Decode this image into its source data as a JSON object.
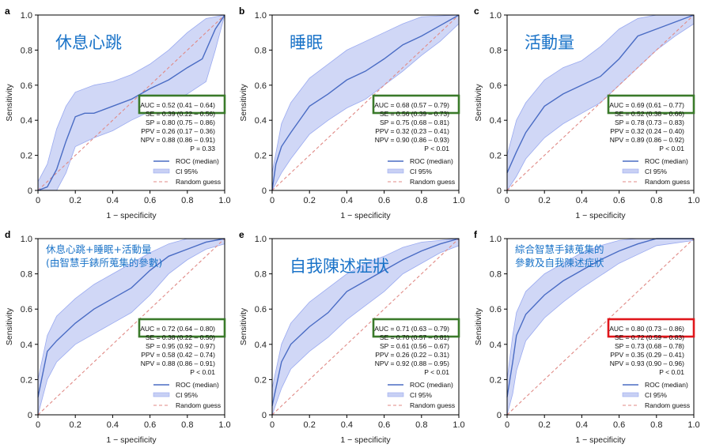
{
  "x_axis_label": "1 − specificity",
  "y_axis_label": "Sensitivity",
  "ticks": [
    "0",
    "0.2",
    "0.4",
    "0.6",
    "0.8",
    "1.0"
  ],
  "legend": {
    "roc": "ROC (median)",
    "ci": "CI 95%",
    "random": "Random guess"
  },
  "colors": {
    "roc": "#4a6cc4",
    "ci_fill": "#c8d0f4",
    "ci_edge": "#9aaaf0",
    "random": "#e08a86",
    "box_green": "#3a7a2a",
    "box_red": "#e0161b",
    "title": "#1a73c8"
  },
  "chart_data": [
    {
      "letter": "a",
      "type": "line",
      "title_lines": [
        "休息心跳"
      ],
      "title_style": "big",
      "auc": "AUC = 0.52 (0.41 – 0.64)",
      "box": "green",
      "stats": [
        "SE = 0.39 (0.22 – 0.56)",
        "SP = 0.80 (0.75 – 0.86)",
        "PPV = 0.26 (0.17 – 0.36)",
        "NPV = 0.88 (0.86 – 0.91)",
        "P = 0.33"
      ],
      "xlim": [
        0,
        1
      ],
      "ylim": [
        0,
        1
      ],
      "roc": [
        [
          0,
          0
        ],
        [
          0.05,
          0.02
        ],
        [
          0.1,
          0.12
        ],
        [
          0.15,
          0.28
        ],
        [
          0.2,
          0.42
        ],
        [
          0.25,
          0.44
        ],
        [
          0.3,
          0.44
        ],
        [
          0.4,
          0.48
        ],
        [
          0.5,
          0.52
        ],
        [
          0.6,
          0.58
        ],
        [
          0.7,
          0.63
        ],
        [
          0.8,
          0.7
        ],
        [
          0.88,
          0.75
        ],
        [
          0.95,
          0.92
        ],
        [
          1,
          1
        ]
      ],
      "ci_upper": [
        [
          0,
          0.05
        ],
        [
          0.05,
          0.15
        ],
        [
          0.1,
          0.35
        ],
        [
          0.15,
          0.48
        ],
        [
          0.2,
          0.56
        ],
        [
          0.3,
          0.6
        ],
        [
          0.4,
          0.62
        ],
        [
          0.5,
          0.66
        ],
        [
          0.6,
          0.72
        ],
        [
          0.7,
          0.8
        ],
        [
          0.8,
          0.9
        ],
        [
          0.9,
          0.98
        ],
        [
          1,
          1
        ]
      ],
      "ci_lower": [
        [
          0,
          0
        ],
        [
          0.1,
          0
        ],
        [
          0.15,
          0.1
        ],
        [
          0.2,
          0.25
        ],
        [
          0.3,
          0.3
        ],
        [
          0.4,
          0.34
        ],
        [
          0.5,
          0.4
        ],
        [
          0.6,
          0.45
        ],
        [
          0.7,
          0.5
        ],
        [
          0.8,
          0.55
        ],
        [
          0.9,
          0.62
        ],
        [
          0.95,
          0.8
        ],
        [
          1,
          1
        ]
      ]
    },
    {
      "letter": "b",
      "type": "line",
      "title_lines": [
        "睡眠"
      ],
      "title_style": "big",
      "auc": "AUC = 0.68 (0.57 – 0.79)",
      "box": "green",
      "stats": [
        "SE = 0.56 (0.39 – 0.73)",
        "SP = 0.75 (0.68 – 0.81)",
        "PPV = 0.32 (0.23 – 0.41)",
        "NPV = 0.90 (0.86 – 0.93)",
        "P < 0.01"
      ],
      "xlim": [
        0,
        1
      ],
      "ylim": [
        0,
        1
      ],
      "roc": [
        [
          0,
          0
        ],
        [
          0.02,
          0.15
        ],
        [
          0.05,
          0.25
        ],
        [
          0.1,
          0.33
        ],
        [
          0.2,
          0.48
        ],
        [
          0.3,
          0.55
        ],
        [
          0.4,
          0.63
        ],
        [
          0.5,
          0.68
        ],
        [
          0.6,
          0.75
        ],
        [
          0.7,
          0.83
        ],
        [
          0.8,
          0.88
        ],
        [
          0.9,
          0.94
        ],
        [
          1,
          1
        ]
      ],
      "ci_upper": [
        [
          0,
          0.1
        ],
        [
          0.05,
          0.38
        ],
        [
          0.1,
          0.5
        ],
        [
          0.2,
          0.64
        ],
        [
          0.3,
          0.72
        ],
        [
          0.4,
          0.8
        ],
        [
          0.5,
          0.85
        ],
        [
          0.6,
          0.9
        ],
        [
          0.7,
          0.95
        ],
        [
          0.8,
          0.99
        ],
        [
          1,
          1
        ]
      ],
      "ci_lower": [
        [
          0,
          0
        ],
        [
          0.05,
          0.1
        ],
        [
          0.1,
          0.18
        ],
        [
          0.2,
          0.32
        ],
        [
          0.3,
          0.4
        ],
        [
          0.4,
          0.47
        ],
        [
          0.5,
          0.52
        ],
        [
          0.6,
          0.6
        ],
        [
          0.7,
          0.68
        ],
        [
          0.8,
          0.77
        ],
        [
          0.9,
          0.85
        ],
        [
          1,
          0.95
        ]
      ]
    },
    {
      "letter": "c",
      "type": "line",
      "title_lines": [
        "活動量"
      ],
      "title_style": "big",
      "auc": "AUC = 0.69 (0.61 – 0.77)",
      "box": "green",
      "stats": [
        "SE = 0.52 (0.38 – 0.66)",
        "SP = 0.78 (0.73 – 0.83)",
        "PPV = 0.32 (0.24 – 0.40)",
        "NPV = 0.89 (0.86 – 0.92)",
        "P < 0.01"
      ],
      "xlim": [
        0,
        1
      ],
      "ylim": [
        0,
        1
      ],
      "roc": [
        [
          0,
          0.1
        ],
        [
          0.05,
          0.22
        ],
        [
          0.1,
          0.33
        ],
        [
          0.2,
          0.48
        ],
        [
          0.3,
          0.55
        ],
        [
          0.4,
          0.6
        ],
        [
          0.5,
          0.65
        ],
        [
          0.6,
          0.75
        ],
        [
          0.7,
          0.88
        ],
        [
          0.8,
          0.92
        ],
        [
          0.9,
          0.96
        ],
        [
          1,
          1
        ]
      ],
      "ci_upper": [
        [
          0,
          0.2
        ],
        [
          0.05,
          0.4
        ],
        [
          0.1,
          0.5
        ],
        [
          0.2,
          0.63
        ],
        [
          0.3,
          0.7
        ],
        [
          0.4,
          0.74
        ],
        [
          0.5,
          0.82
        ],
        [
          0.6,
          0.92
        ],
        [
          0.7,
          0.98
        ],
        [
          0.8,
          1
        ],
        [
          1,
          1
        ]
      ],
      "ci_lower": [
        [
          0,
          0
        ],
        [
          0.05,
          0.08
        ],
        [
          0.1,
          0.18
        ],
        [
          0.2,
          0.3
        ],
        [
          0.3,
          0.38
        ],
        [
          0.4,
          0.44
        ],
        [
          0.5,
          0.5
        ],
        [
          0.6,
          0.6
        ],
        [
          0.7,
          0.7
        ],
        [
          0.8,
          0.8
        ],
        [
          0.9,
          0.88
        ],
        [
          1,
          0.95
        ]
      ]
    },
    {
      "letter": "d",
      "type": "line",
      "title_lines": [
        "休息心跳+睡眠+活動量",
        "(由智慧手錶所蒐集的參數)"
      ],
      "title_style": "small",
      "auc": "AUC = 0.72 (0.64 – 0.80)",
      "box": "green",
      "stats": [
        "SE = 0.38 (0.22 – 0.50)",
        "SP = 0.95 (0.92 – 0.97)",
        "PPV = 0.58 (0.42 – 0.74)",
        "NPV = 0.88 (0.86 – 0.91)",
        "P < 0.01"
      ],
      "xlim": [
        0,
        1
      ],
      "ylim": [
        0,
        1
      ],
      "roc": [
        [
          0,
          0.1
        ],
        [
          0.05,
          0.36
        ],
        [
          0.1,
          0.42
        ],
        [
          0.2,
          0.52
        ],
        [
          0.3,
          0.6
        ],
        [
          0.4,
          0.66
        ],
        [
          0.5,
          0.72
        ],
        [
          0.6,
          0.82
        ],
        [
          0.7,
          0.9
        ],
        [
          0.8,
          0.94
        ],
        [
          0.9,
          0.98
        ],
        [
          1,
          1
        ]
      ],
      "ci_upper": [
        [
          0,
          0.2
        ],
        [
          0.05,
          0.45
        ],
        [
          0.1,
          0.56
        ],
        [
          0.2,
          0.66
        ],
        [
          0.3,
          0.74
        ],
        [
          0.4,
          0.8
        ],
        [
          0.5,
          0.86
        ],
        [
          0.6,
          0.92
        ],
        [
          0.7,
          0.97
        ],
        [
          0.8,
          1
        ],
        [
          1,
          1
        ]
      ],
      "ci_lower": [
        [
          0,
          0
        ],
        [
          0.05,
          0.2
        ],
        [
          0.1,
          0.3
        ],
        [
          0.2,
          0.4
        ],
        [
          0.3,
          0.46
        ],
        [
          0.4,
          0.52
        ],
        [
          0.5,
          0.58
        ],
        [
          0.6,
          0.68
        ],
        [
          0.7,
          0.8
        ],
        [
          0.8,
          0.88
        ],
        [
          0.9,
          0.94
        ],
        [
          1,
          0.97
        ]
      ]
    },
    {
      "letter": "e",
      "type": "line",
      "title_lines": [
        "自我陳述症狀"
      ],
      "title_style": "big",
      "auc": "AUC = 0.71 (0.63 – 0.79)",
      "box": "green",
      "stats": [
        "SE = 0.70 (0.57 – 0.81)",
        "SP = 0.61 (0.56 – 0.67)",
        "PPV = 0.26 (0.22 – 0.31)",
        "NPV = 0.92 (0.88 – 0.95)",
        "P < 0.01"
      ],
      "xlim": [
        0,
        1
      ],
      "ylim": [
        0,
        1
      ],
      "roc": [
        [
          0,
          0.05
        ],
        [
          0.05,
          0.3
        ],
        [
          0.1,
          0.4
        ],
        [
          0.2,
          0.5
        ],
        [
          0.3,
          0.58
        ],
        [
          0.4,
          0.7
        ],
        [
          0.5,
          0.76
        ],
        [
          0.6,
          0.82
        ],
        [
          0.7,
          0.88
        ],
        [
          0.8,
          0.93
        ],
        [
          0.9,
          0.97
        ],
        [
          1,
          1
        ]
      ],
      "ci_upper": [
        [
          0,
          0.15
        ],
        [
          0.05,
          0.4
        ],
        [
          0.1,
          0.52
        ],
        [
          0.2,
          0.64
        ],
        [
          0.3,
          0.72
        ],
        [
          0.4,
          0.8
        ],
        [
          0.5,
          0.86
        ],
        [
          0.6,
          0.9
        ],
        [
          0.7,
          0.95
        ],
        [
          0.8,
          0.98
        ],
        [
          1,
          1
        ]
      ],
      "ci_lower": [
        [
          0,
          0
        ],
        [
          0.05,
          0.15
        ],
        [
          0.1,
          0.26
        ],
        [
          0.2,
          0.36
        ],
        [
          0.3,
          0.44
        ],
        [
          0.4,
          0.54
        ],
        [
          0.5,
          0.62
        ],
        [
          0.6,
          0.7
        ],
        [
          0.7,
          0.8
        ],
        [
          0.8,
          0.86
        ],
        [
          0.9,
          0.92
        ],
        [
          1,
          0.96
        ]
      ]
    },
    {
      "letter": "f",
      "type": "line",
      "title_lines": [
        "綜合智慧手錶蒐集的",
        "參數及自我陳述症狀"
      ],
      "title_style": "small",
      "auc": "AUC = 0.80 (0.73 – 0.86)",
      "box": "red",
      "stats": [
        "SE = 0.72 (0.59 – 0.83)",
        "SP = 0.73 (0.68 – 0.78)",
        "PPV = 0.35 (0.29 – 0.41)",
        "NPV = 0.93 (0.90 – 0.96)",
        "P < 0.01"
      ],
      "xlim": [
        0,
        1
      ],
      "ylim": [
        0,
        1
      ],
      "roc": [
        [
          0,
          0.1
        ],
        [
          0.03,
          0.3
        ],
        [
          0.05,
          0.45
        ],
        [
          0.1,
          0.57
        ],
        [
          0.2,
          0.68
        ],
        [
          0.3,
          0.76
        ],
        [
          0.4,
          0.82
        ],
        [
          0.5,
          0.88
        ],
        [
          0.6,
          0.93
        ],
        [
          0.7,
          0.97
        ],
        [
          0.8,
          1
        ],
        [
          1,
          1
        ]
      ],
      "ci_upper": [
        [
          0,
          0.2
        ],
        [
          0.03,
          0.45
        ],
        [
          0.05,
          0.58
        ],
        [
          0.1,
          0.7
        ],
        [
          0.2,
          0.8
        ],
        [
          0.3,
          0.86
        ],
        [
          0.4,
          0.92
        ],
        [
          0.5,
          0.96
        ],
        [
          0.6,
          0.99
        ],
        [
          0.7,
          1
        ],
        [
          1,
          1
        ]
      ],
      "ci_lower": [
        [
          0,
          0
        ],
        [
          0.03,
          0.12
        ],
        [
          0.05,
          0.25
        ],
        [
          0.1,
          0.42
        ],
        [
          0.2,
          0.55
        ],
        [
          0.3,
          0.64
        ],
        [
          0.4,
          0.72
        ],
        [
          0.5,
          0.79
        ],
        [
          0.6,
          0.86
        ],
        [
          0.7,
          0.91
        ],
        [
          0.8,
          0.96
        ],
        [
          1,
          0.99
        ]
      ]
    }
  ]
}
